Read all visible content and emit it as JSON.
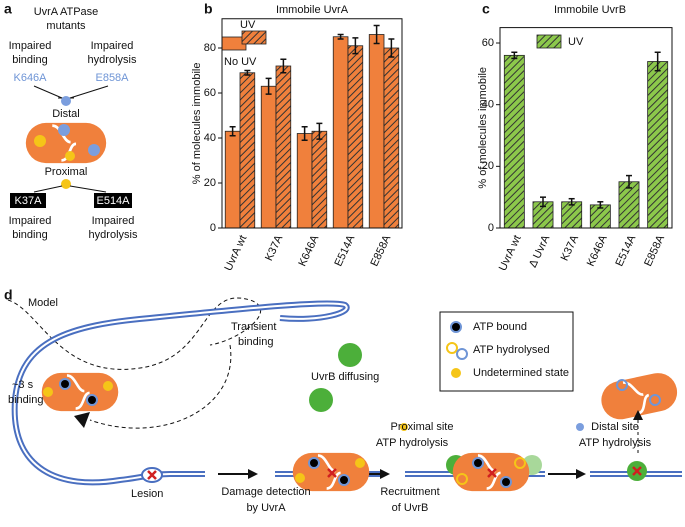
{
  "panels": {
    "labels": [
      "a",
      "b",
      "c",
      "d"
    ],
    "a": {
      "heading": [
        "UvrA ATPase",
        "mutants"
      ],
      "top_left": [
        "Impaired",
        "binding"
      ],
      "top_right": [
        "Impaired",
        "hydrolysis"
      ],
      "distal_mutants": [
        "K646A",
        "E858A"
      ],
      "distal": "Distal",
      "proximal": "Proximal",
      "proximal_mutants": [
        "K37A",
        "E514A"
      ],
      "bottom_left": [
        "Impaired",
        "binding"
      ],
      "bottom_right": [
        "Impaired",
        "hydrolysis"
      ]
    },
    "d": {
      "model": "Model",
      "transient": [
        "Transient",
        "binding"
      ],
      "dwell": [
        "~3 s",
        "binding"
      ],
      "uvrb": "UvrB diffusing",
      "lesion": "Lesion",
      "detection": [
        "Damage detection",
        "by UvrA"
      ],
      "proximal": [
        "Proximal site",
        "ATP hydrolysis"
      ],
      "recruitment": [
        "Recruitment",
        "of UvrB"
      ],
      "distal": [
        "Distal site",
        "ATP hydrolysis"
      ],
      "legend": [
        "ATP bound",
        "ATP hydrolysed",
        "Undetermined state"
      ]
    }
  },
  "chart_data": [
    {
      "type": "bar",
      "title": "Immobile UvrA",
      "y_label": "% of  molecules immobile",
      "categories": [
        "UvrA wt",
        "K37A",
        "K646A",
        "E514A",
        "E858A"
      ],
      "series": [
        {
          "name": "No UV",
          "color": "#f0803c",
          "hatch": false,
          "values": [
            43,
            63,
            42,
            85,
            86
          ],
          "errors": [
            2,
            3.5,
            3,
            1,
            4
          ]
        },
        {
          "name": "UV",
          "color": "#f0803c",
          "hatch": true,
          "values": [
            69,
            72,
            43,
            81,
            80
          ],
          "errors": [
            1,
            3,
            3.5,
            3.5,
            4
          ]
        }
      ],
      "ylim": [
        0,
        93
      ],
      "yticks": [
        0,
        20,
        40,
        60,
        80
      ],
      "legend": "upper left"
    },
    {
      "type": "bar",
      "title": "Immobile UvrB",
      "y_label": "% of  molecules immobile",
      "categories": [
        "UvrA wt",
        "Δ UvrA",
        "K37A",
        "K646A",
        "E514A",
        "E858A"
      ],
      "series": [
        {
          "name": "UV",
          "color": "#8cc84b",
          "hatch": true,
          "values": [
            56,
            8.5,
            8.5,
            7.5,
            15,
            54
          ],
          "errors": [
            1,
            1.5,
            1,
            1,
            2,
            3
          ]
        }
      ],
      "ylim": [
        0,
        65
      ],
      "yticks": [
        0,
        20,
        40,
        60
      ],
      "legend": "upper left"
    }
  ]
}
